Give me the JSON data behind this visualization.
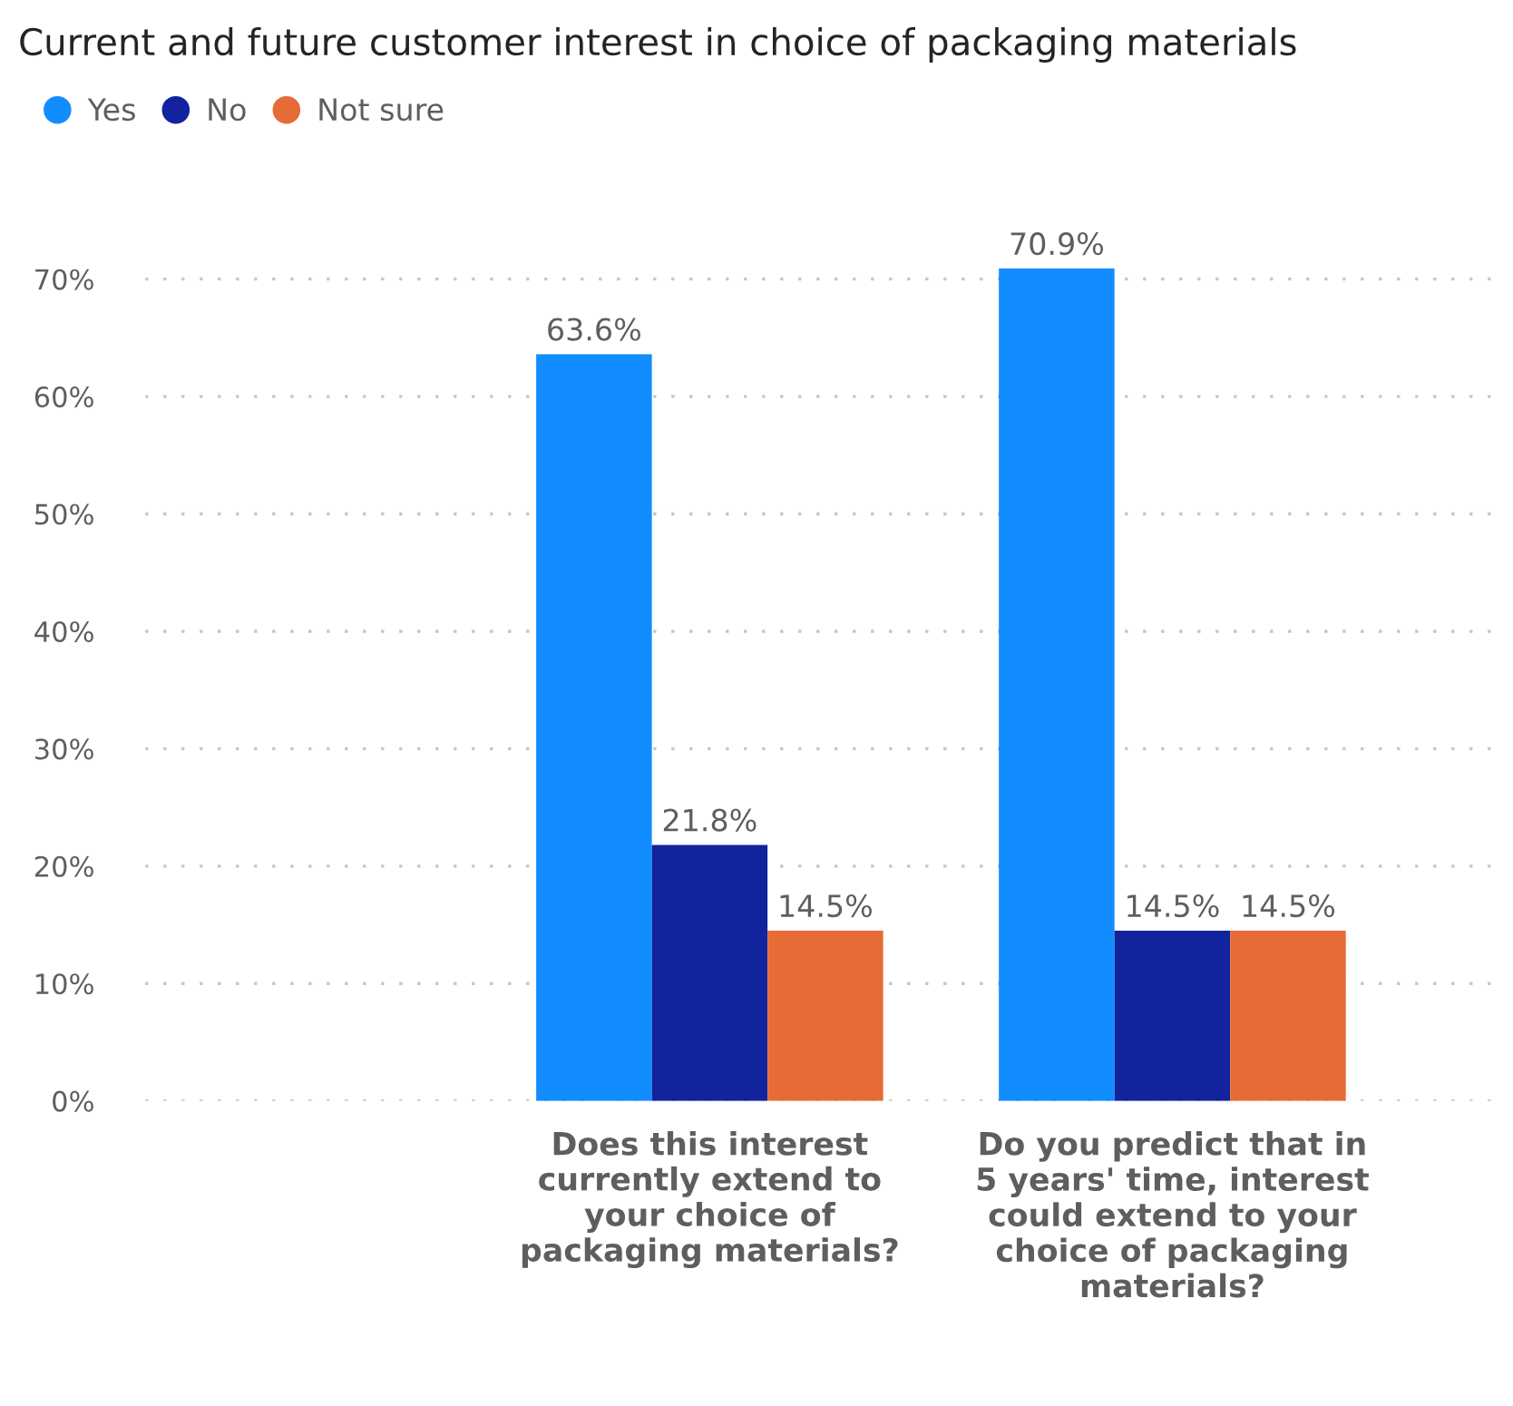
{
  "chart_data": {
    "type": "bar",
    "title": "Current and future customer interest in choice of packaging materials",
    "categories": [
      null,
      "Does this interest\ncurrently extend to\nyour choice of\npackaging materials?",
      "Do you predict that in\n5 years' time, interest\ncould extend to your\nchoice of packaging\nmaterials?"
    ],
    "series": [
      {
        "name": "Yes",
        "color": "#118dff",
        "values": [
          null,
          63.6,
          70.9
        ],
        "value_labels": [
          null,
          "63.6%",
          "70.9%"
        ]
      },
      {
        "name": "No",
        "color": "#12239e",
        "values": [
          null,
          21.8,
          14.5
        ],
        "value_labels": [
          null,
          "21.8%",
          "14.5%"
        ]
      },
      {
        "name": "Not sure",
        "color": "#e66c37",
        "values": [
          null,
          14.5,
          14.5
        ],
        "value_labels": [
          null,
          "14.5%",
          "14.5%"
        ]
      }
    ],
    "yticks": [
      {
        "value": 0,
        "label": "0%"
      },
      {
        "value": 10,
        "label": "10%"
      },
      {
        "value": 20,
        "label": "20%"
      },
      {
        "value": 30,
        "label": "30%"
      },
      {
        "value": 40,
        "label": "40%"
      },
      {
        "value": 50,
        "label": "50%"
      },
      {
        "value": 60,
        "label": "60%"
      },
      {
        "value": 70,
        "label": "70%"
      }
    ],
    "ylim": [
      0,
      70.9
    ],
    "grid": "y",
    "legend": "top left"
  }
}
